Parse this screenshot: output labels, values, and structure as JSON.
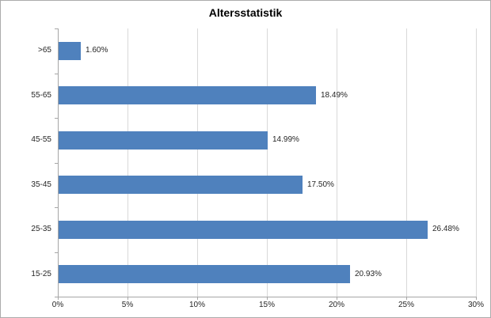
{
  "chart_data": {
    "type": "bar",
    "orientation": "horizontal",
    "title": "Altersstatistik",
    "categories": [
      ">65",
      "55-65",
      "45-55",
      "35-45",
      "25-35",
      "15-25"
    ],
    "values": [
      1.6,
      18.49,
      14.99,
      17.5,
      26.48,
      20.93
    ],
    "data_labels": [
      "1.60%",
      "18.49%",
      "14.99%",
      "17.50%",
      "26.48%",
      "20.93%"
    ],
    "x_ticks": [
      {
        "value": 0,
        "label": "0%"
      },
      {
        "value": 5,
        "label": "5%"
      },
      {
        "value": 10,
        "label": "10%"
      },
      {
        "value": 15,
        "label": "15%"
      },
      {
        "value": 20,
        "label": "20%"
      },
      {
        "value": 25,
        "label": "25%"
      },
      {
        "value": 30,
        "label": "30%"
      }
    ],
    "xlim": [
      0,
      30
    ],
    "xlabel": "",
    "ylabel": "",
    "grid": "vertical",
    "legend": "none",
    "colors": {
      "bar": "#4F81BD",
      "gridline": "#D9D9D9",
      "axis": "#A6A6A6",
      "text": "#262626",
      "title": "#000000",
      "background": "#FFFFFF",
      "border": "#ABABAB"
    }
  }
}
